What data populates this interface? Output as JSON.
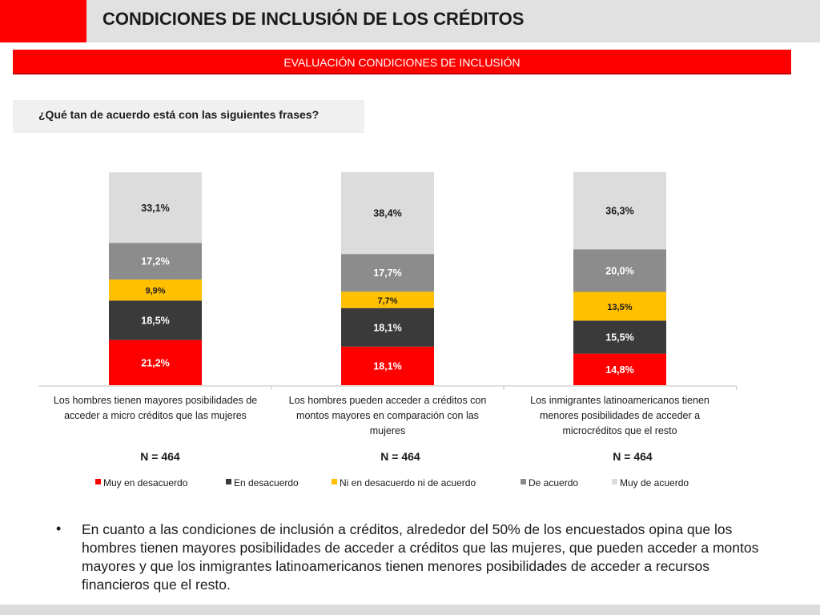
{
  "header": {
    "title": "CONDICIONES DE INCLUSIÓN DE LOS CRÉDITOS",
    "section_label": "EVALUACIÓN CONDICIONES DE INCLUSIÓN",
    "question": "¿Qué tan de acuerdo está con las siguientes frases?",
    "accent_color": "#ff0000"
  },
  "chart_data": {
    "type": "bar",
    "stacked": true,
    "unit": "%",
    "ylim": [
      0,
      100
    ],
    "grid": false,
    "legend_position": "bottom",
    "categories": [
      "Los hombres tienen mayores posibilidades de acceder a micro créditos que  las mujeres",
      "Los hombres pueden acceder a créditos con montos mayores en comparación con las mujeres",
      "Los inmigrantes latinoamericanos tienen menores posibilidades de acceder a microcréditos que  el resto"
    ],
    "category_lines": [
      [
        "Los hombres tienen mayores posibilidades de",
        "acceder a micro créditos que  las mujeres"
      ],
      [
        "Los hombres pueden acceder a créditos con",
        "montos mayores en comparación con las",
        "mujeres"
      ],
      [
        "Los inmigrantes latinoamericanos tienen",
        "menores posibilidades de acceder a",
        "microcréditos que  el resto"
      ]
    ],
    "sample_sizes": [
      "N = 464",
      "N = 464",
      "N = 464"
    ],
    "series": [
      {
        "name": "Muy en desacuerdo",
        "color": "#ff0000",
        "values": [
          21.2,
          18.1,
          14.8
        ],
        "labels": [
          "21,2%",
          "18,1%",
          "14,8%"
        ],
        "label_color": "#ffffff"
      },
      {
        "name": "En desacuerdo",
        "color": "#3a3a3a",
        "values": [
          18.5,
          18.1,
          15.5
        ],
        "labels": [
          "18,5%",
          "18,1%",
          "15,5%"
        ],
        "label_color": "#ffffff"
      },
      {
        "name": "Ni en desacuerdo ni de acuerdo",
        "color": "#ffc000",
        "values": [
          9.9,
          7.7,
          13.5
        ],
        "labels": [
          "9,9%",
          "7,7%",
          "13,5%"
        ],
        "label_color": "#1a1a1a"
      },
      {
        "name": "De acuerdo",
        "color": "#8c8c8c",
        "values": [
          17.2,
          17.7,
          20.0
        ],
        "labels": [
          "17,2%",
          "17,7%",
          "20,0%"
        ],
        "label_color": "#ffffff"
      },
      {
        "name": "Muy de acuerdo",
        "color": "#dcdcdc",
        "values": [
          33.1,
          38.4,
          36.3
        ],
        "labels": [
          "33,1%",
          "38,4%",
          "36,3%"
        ],
        "label_color": "#1a1a1a"
      }
    ]
  },
  "summary": {
    "bullet": "•",
    "text": "En cuanto a las condiciones de inclusión a créditos, alrededor del 50% de los encuestados opina que los hombres tienen mayores posibilidades de acceder a créditos que las mujeres, que pueden acceder a montos mayores y que los inmigrantes latinoamericanos tienen menores posibilidades de acceder a recursos financieros que el resto."
  }
}
